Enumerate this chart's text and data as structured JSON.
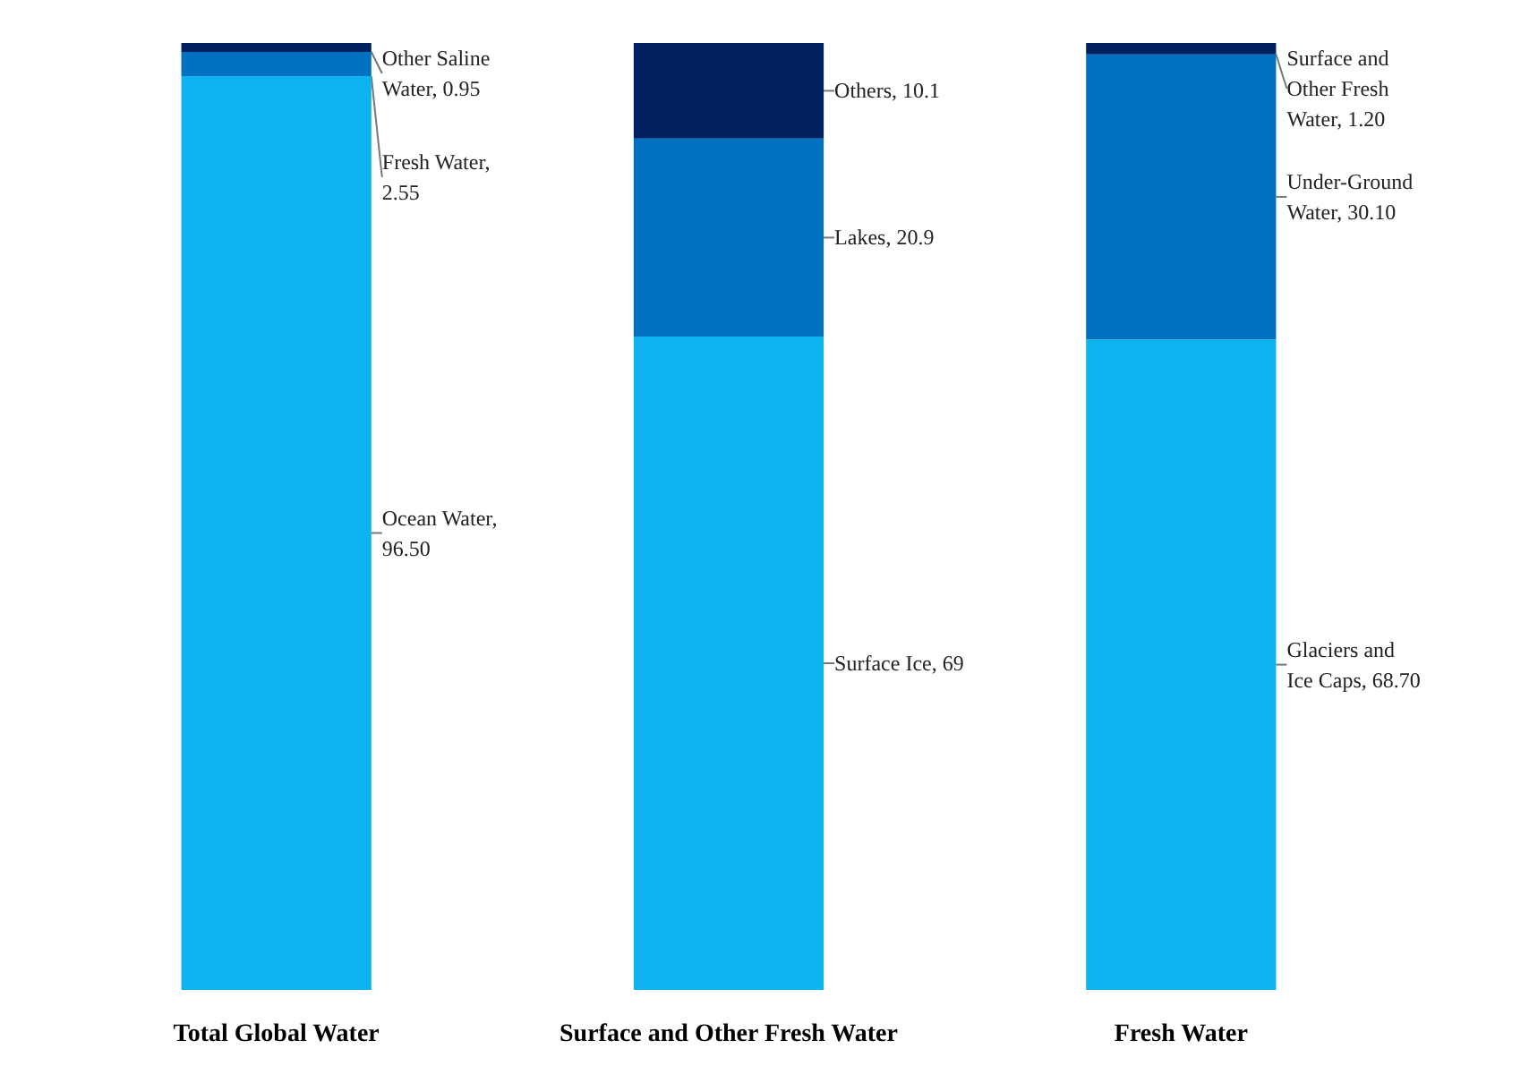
{
  "chart_data": {
    "type": "bar",
    "stacked": true,
    "legend": false,
    "grid": false,
    "categories": [
      "Total Global Water",
      "Surface and Other Fresh Water",
      "Fresh Water"
    ],
    "series": [
      {
        "name": "Ocean Water,",
        "color": "#0db2ee",
        "values": [
          96.5,
          null,
          null
        ],
        "value_labels": [
          "96.50",
          null,
          null
        ]
      },
      {
        "name": "Fresh Water,",
        "color": "#0070c0",
        "values": [
          2.55,
          null,
          null
        ],
        "value_labels": [
          "2.55",
          null,
          null
        ]
      },
      {
        "name": "Other Saline Water,",
        "color": "#002060",
        "values": [
          0.95,
          null,
          null
        ],
        "value_labels": [
          "0.95",
          null,
          null
        ]
      },
      {
        "name": "Surface Ice,",
        "color": "#0db2ee",
        "values": [
          null,
          69,
          null
        ],
        "value_labels": [
          null,
          "69",
          null
        ]
      },
      {
        "name": "Lakes,",
        "color": "#0070c0",
        "values": [
          null,
          20.9,
          null
        ],
        "value_labels": [
          null,
          "20.9",
          null
        ]
      },
      {
        "name": "Others,",
        "color": "#002060",
        "values": [
          null,
          10.1,
          null
        ],
        "value_labels": [
          null,
          "10.1",
          null
        ]
      },
      {
        "name": "Glaciers and Ice Caps,",
        "color": "#0db2ee",
        "values": [
          null,
          null,
          68.7
        ],
        "value_labels": [
          null,
          null,
          "68.70"
        ]
      },
      {
        "name": "Under-Ground Water,",
        "color": "#0070c0",
        "values": [
          null,
          null,
          30.1
        ],
        "value_labels": [
          null,
          null,
          "30.10"
        ]
      },
      {
        "name": "Surface and Other Fresh Water,",
        "color": "#002060",
        "values": [
          null,
          null,
          1.2
        ],
        "value_labels": [
          null,
          null,
          "1.20"
        ]
      }
    ]
  }
}
